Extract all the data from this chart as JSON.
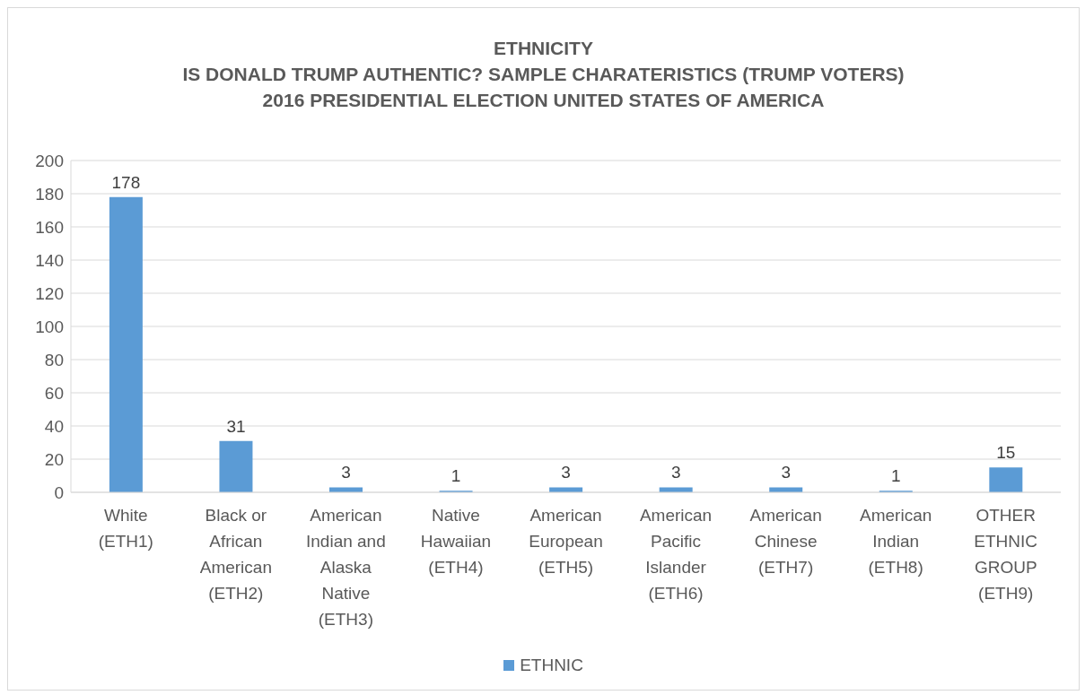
{
  "chart_data": {
    "type": "bar",
    "title": "ETHNICITY\nIS DONALD TRUMP AUTHENTIC? SAMPLE CHARATERISTICS (TRUMP VOTERS)\n2016 PRESIDENTIAL ELECTION UNITED STATES OF AMERICA",
    "categories": [
      "White (ETH1)",
      "Black or African American (ETH2)",
      "American Indian and Alaska Native (ETH3)",
      "Native Hawaiian (ETH4)",
      "American European (ETH5)",
      "American Pacific Islander (ETH6)",
      "American Chinese (ETH7)",
      "American Indian (ETH8)",
      "OTHER ETHNIC GROUP (ETH9)"
    ],
    "series": [
      {
        "name": "ETHNIC",
        "color": "#5b9bd5",
        "values": [
          178,
          31,
          3,
          1,
          3,
          3,
          3,
          1,
          15
        ]
      }
    ],
    "ylim": [
      0,
      200
    ],
    "yticks": [
      0,
      20,
      40,
      60,
      80,
      100,
      120,
      140,
      160,
      180,
      200
    ],
    "grid": "y",
    "data_labels": true,
    "legend": "bottom"
  }
}
